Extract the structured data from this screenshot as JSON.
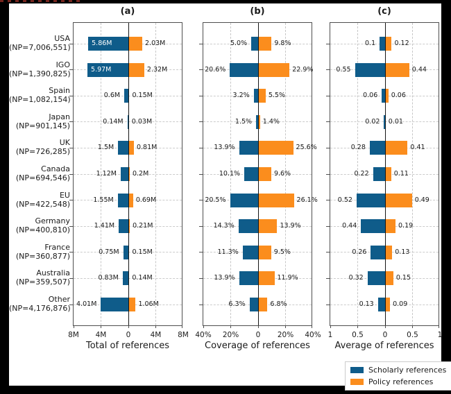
{
  "legend": [
    {
      "label": "Scholarly references",
      "color": "#0f5c8a"
    },
    {
      "label": "Policy references",
      "color": "#fb8d1d"
    }
  ],
  "categories": [
    {
      "name": "USA",
      "np": "(NP=7,006,551)"
    },
    {
      "name": "IGO",
      "np": "(NP=1,390,825)"
    },
    {
      "name": "Spain",
      "np": "(NP=1,082,154)"
    },
    {
      "name": "Japan",
      "np": "(NP=901,145)"
    },
    {
      "name": "UK",
      "np": "(NP=726,285)"
    },
    {
      "name": "Canada",
      "np": "(NP=694,546)"
    },
    {
      "name": "EU",
      "np": "(NP=422,548)"
    },
    {
      "name": "Germany",
      "np": "(NP=400,810)"
    },
    {
      "name": "France",
      "np": "(NP=360,877)"
    },
    {
      "name": "Australia",
      "np": "(NP=359,507)"
    },
    {
      "name": "Other",
      "np": "(NP=4,176,876)"
    }
  ],
  "chart_data": [
    {
      "type": "bar",
      "variant": "diverging-horizontal",
      "title": "(a)",
      "xlabel": "Total of references",
      "xticks": [
        "8M",
        "4M",
        "0",
        "4M",
        "8M"
      ],
      "axis_max": 8,
      "grid": true,
      "legend_position": "bottom-right",
      "categories": [
        "USA",
        "IGO",
        "Spain",
        "Japan",
        "UK",
        "Canada",
        "EU",
        "Germany",
        "France",
        "Australia",
        "Other"
      ],
      "series": [
        {
          "name": "Scholarly references",
          "side": "left",
          "values": [
            5.86,
            5.97,
            0.6,
            0.14,
            1.5,
            1.12,
            1.55,
            1.41,
            0.75,
            0.83,
            4.01
          ],
          "labels": [
            "5.86M",
            "5.97M",
            "0.6M",
            "0.14M",
            "1.5M",
            "1.12M",
            "1.55M",
            "1.41M",
            "0.75M",
            "0.83M",
            "4.01M"
          ]
        },
        {
          "name": "Policy references",
          "side": "right",
          "values": [
            2.03,
            2.32,
            0.15,
            0.03,
            0.81,
            0.2,
            0.69,
            0.21,
            0.15,
            0.14,
            1.06
          ],
          "labels": [
            "2.03M",
            "2.32M",
            "0.15M",
            "0.03M",
            "0.81M",
            "0.2M",
            "0.69M",
            "0.21M",
            "0.15M",
            "0.14M",
            "1.06M"
          ]
        }
      ],
      "inside_value_labels": [
        0,
        1
      ]
    },
    {
      "type": "bar",
      "variant": "diverging-horizontal",
      "title": "(b)",
      "xlabel": "Coverage of references",
      "xticks": [
        "40%",
        "20%",
        "0",
        "20%",
        "40%"
      ],
      "axis_max": 40,
      "grid": true,
      "categories": [
        "USA",
        "IGO",
        "Spain",
        "Japan",
        "UK",
        "Canada",
        "EU",
        "Germany",
        "France",
        "Australia",
        "Other"
      ],
      "series": [
        {
          "name": "Scholarly references",
          "side": "left",
          "values": [
            5.0,
            20.6,
            3.2,
            1.5,
            13.9,
            10.1,
            20.5,
            14.3,
            11.3,
            13.9,
            6.3
          ],
          "labels": [
            "5.0%",
            "20.6%",
            "3.2%",
            "1.5%",
            "13.9%",
            "10.1%",
            "20.5%",
            "14.3%",
            "11.3%",
            "13.9%",
            "6.3%"
          ]
        },
        {
          "name": "Policy references",
          "side": "right",
          "values": [
            9.8,
            22.9,
            5.5,
            1.4,
            25.6,
            9.6,
            26.1,
            13.9,
            9.5,
            11.9,
            6.8
          ],
          "labels": [
            "9.8%",
            "22.9%",
            "5.5%",
            "1.4%",
            "25.6%",
            "9.6%",
            "26.1%",
            "13.9%",
            "9.5%",
            "11.9%",
            "6.8%"
          ]
        }
      ],
      "inside_value_labels": []
    },
    {
      "type": "bar",
      "variant": "diverging-horizontal",
      "title": "(c)",
      "xlabel": "Average of references",
      "xticks": [
        "1",
        "0.5",
        "0",
        "0.5",
        "1"
      ],
      "axis_max": 1,
      "grid": true,
      "categories": [
        "USA",
        "IGO",
        "Spain",
        "Japan",
        "UK",
        "Canada",
        "EU",
        "Germany",
        "France",
        "Australia",
        "Other"
      ],
      "series": [
        {
          "name": "Scholarly references",
          "side": "left",
          "values": [
            0.1,
            0.55,
            0.06,
            0.02,
            0.28,
            0.22,
            0.52,
            0.44,
            0.26,
            0.32,
            0.13
          ],
          "labels": [
            "0.1",
            "0.55",
            "0.06",
            "0.02",
            "0.28",
            "0.22",
            "0.52",
            "0.44",
            "0.26",
            "0.32",
            "0.13"
          ]
        },
        {
          "name": "Policy references",
          "side": "right",
          "values": [
            0.12,
            0.44,
            0.06,
            0.01,
            0.41,
            0.11,
            0.49,
            0.19,
            0.13,
            0.15,
            0.09
          ],
          "labels": [
            "0.12",
            "0.44",
            "0.06",
            "0.01",
            "0.41",
            "0.11",
            "0.49",
            "0.19",
            "0.13",
            "0.15",
            "0.09"
          ]
        }
      ],
      "inside_value_labels": []
    }
  ]
}
